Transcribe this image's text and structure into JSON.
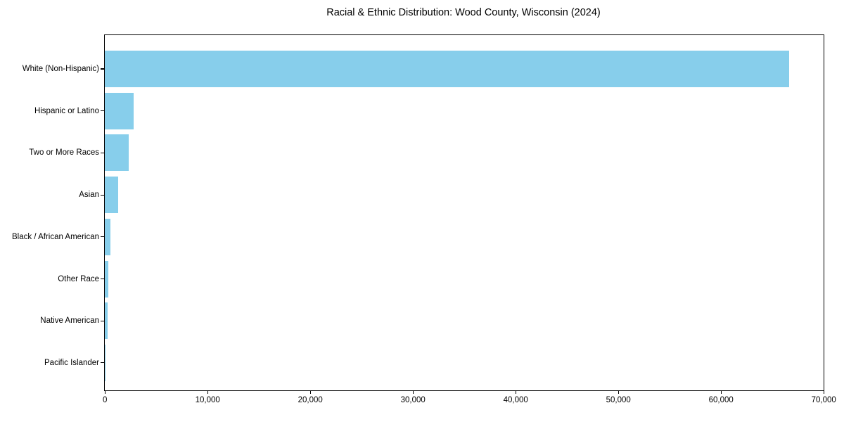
{
  "chart_data": {
    "type": "bar",
    "orientation": "horizontal",
    "title": "Racial & Ethnic Distribution: Wood County, Wisconsin (2024)",
    "categories": [
      "White (Non-Hispanic)",
      "Hispanic or Latino",
      "Two or More Races",
      "Asian",
      "Black / African American",
      "Other Race",
      "Native American",
      "Pacific Islander"
    ],
    "values": [
      66650,
      2820,
      2290,
      1300,
      510,
      340,
      275,
      25
    ],
    "xlabel": "",
    "ylabel": "",
    "xlim": [
      0,
      70000
    ],
    "xtick_values": [
      0,
      10000,
      20000,
      30000,
      40000,
      50000,
      60000,
      70000
    ],
    "xtick_labels": [
      "0",
      "10,000",
      "20,000",
      "30,000",
      "40,000",
      "50,000",
      "60,000",
      "70,000"
    ],
    "bar_color": "#87CEEB",
    "axis_color": "#000000",
    "text_color": "#000000",
    "background_color": "#ffffff",
    "grid": false,
    "legend": null
  }
}
